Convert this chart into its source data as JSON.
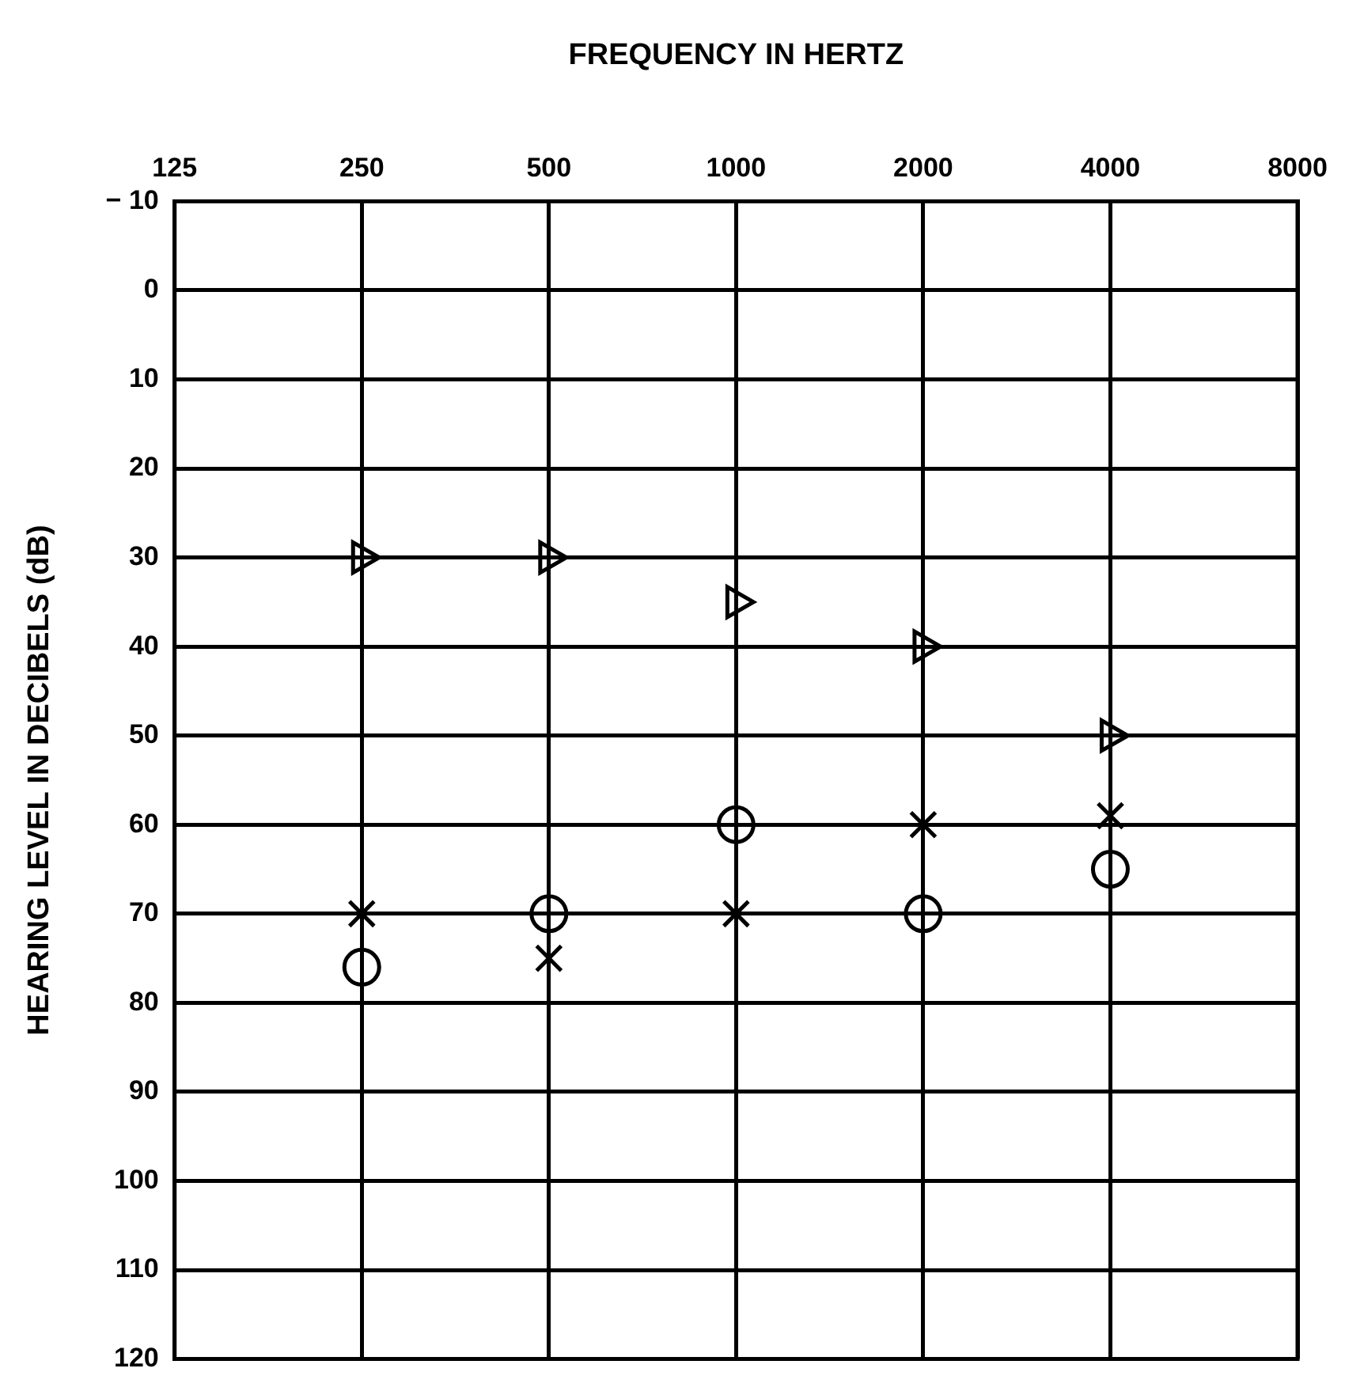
{
  "chart_data": {
    "type": "scatter",
    "xlabel": "FREQUENCY IN HERTZ",
    "ylabel": "HEARING LEVEL IN DECIBELS (dB)",
    "log": "x",
    "xlim": [
      125,
      8000
    ],
    "xticks": [
      125,
      250,
      500,
      1000,
      2000,
      4000,
      8000
    ],
    "ylim": [
      120,
      -10
    ],
    "yticks": [
      {
        "value": -10,
        "label": "− 10"
      },
      0,
      10,
      20,
      30,
      40,
      50,
      60,
      70,
      80,
      90,
      100,
      110,
      120
    ],
    "grid": true,
    "x": [
      250,
      500,
      1000,
      2000,
      4000
    ],
    "series": [
      {
        "color": "#000000",
        "marker": "triangle",
        "values": [
          30,
          30,
          35,
          40,
          50
        ]
      },
      {
        "color": "#000000",
        "marker": "circle",
        "values": [
          76,
          70,
          60,
          70,
          65
        ]
      },
      {
        "color": "#000000",
        "marker": "cross",
        "values": [
          70,
          75,
          70,
          60,
          59
        ]
      }
    ]
  }
}
